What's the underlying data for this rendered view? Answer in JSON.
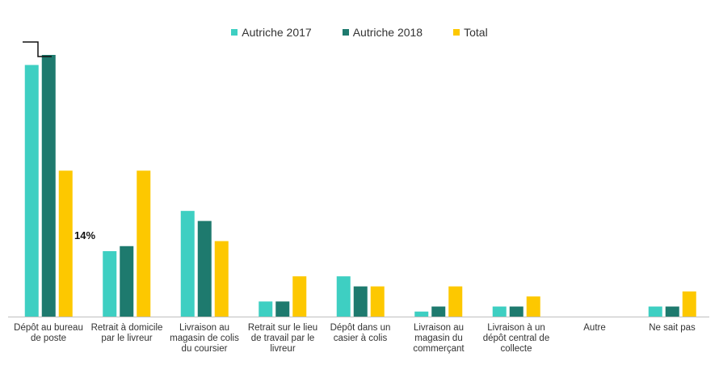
{
  "chart_data": {
    "type": "bar",
    "title": "",
    "xlabel": "",
    "ylabel": "",
    "ylim": [
      0,
      52
    ],
    "grid": false,
    "legend_position": "top-center",
    "categories": [
      "Dépôt au bureau de poste",
      "Retrait à domicile par le livreur",
      "Livraison au magasin de colis du coursier",
      "Retrait sur le lieu de travail par le livreur",
      "Dépôt dans un casier à colis",
      "Livraison au magasin du commerçant",
      "Livraison à un dépôt central de collecte",
      "Autre",
      "Ne sait pas"
    ],
    "series": [
      {
        "name": "Autriche 2017",
        "color": "#3ecfc2",
        "values": [
          50,
          13,
          21,
          3,
          8,
          1,
          2,
          0,
          2
        ]
      },
      {
        "name": "Autriche 2018",
        "color": "#1e7a6e",
        "values": [
          52,
          14,
          19,
          3,
          6,
          2,
          2,
          0,
          2
        ]
      },
      {
        "name": "Total",
        "color": "#fdc800",
        "values": [
          29,
          29,
          15,
          8,
          6,
          6,
          4,
          0,
          5
        ]
      }
    ],
    "annotations": [
      {
        "text": "14%"
      }
    ]
  }
}
